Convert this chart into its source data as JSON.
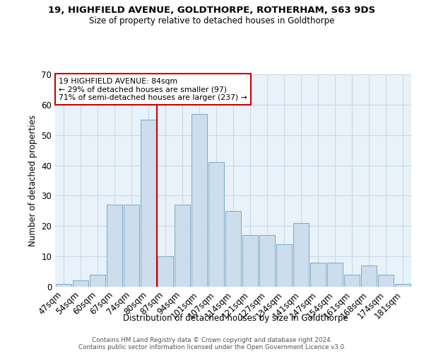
{
  "title1": "19, HIGHFIELD AVENUE, GOLDTHORPE, ROTHERHAM, S63 9DS",
  "title2": "Size of property relative to detached houses in Goldthorpe",
  "xlabel": "Distribution of detached houses by size in Goldthorpe",
  "ylabel": "Number of detached properties",
  "bar_labels": [
    "47sqm",
    "54sqm",
    "60sqm",
    "67sqm",
    "74sqm",
    "80sqm",
    "87sqm",
    "94sqm",
    "101sqm",
    "107sqm",
    "114sqm",
    "121sqm",
    "127sqm",
    "134sqm",
    "141sqm",
    "147sqm",
    "154sqm",
    "161sqm",
    "168sqm",
    "174sqm",
    "181sqm"
  ],
  "bar_values": [
    1,
    2,
    4,
    27,
    27,
    55,
    10,
    27,
    57,
    41,
    25,
    17,
    17,
    14,
    21,
    8,
    8,
    4,
    7,
    4,
    1
  ],
  "bar_color": "#ccdded",
  "bar_edge_color": "#7aaac4",
  "grid_color": "#c8dae8",
  "bg_color": "#e8f2f8",
  "vline_color": "#cc0000",
  "vline_x": 5.5,
  "annotation_line1": "19 HIGHFIELD AVENUE: 84sqm",
  "annotation_line2": "← 29% of detached houses are smaller (97)",
  "annotation_line3": "71% of semi-detached houses are larger (237) →",
  "annotation_box_facecolor": "white",
  "annotation_box_edgecolor": "#cc0000",
  "ylim": [
    0,
    70
  ],
  "yticks": [
    0,
    10,
    20,
    30,
    40,
    50,
    60,
    70
  ],
  "title1_fontsize": 9.5,
  "title2_fontsize": 8.5,
  "footer1": "Contains HM Land Registry data © Crown copyright and database right 2024.",
  "footer2": "Contains public sector information licensed under the Open Government Licence v3.0."
}
